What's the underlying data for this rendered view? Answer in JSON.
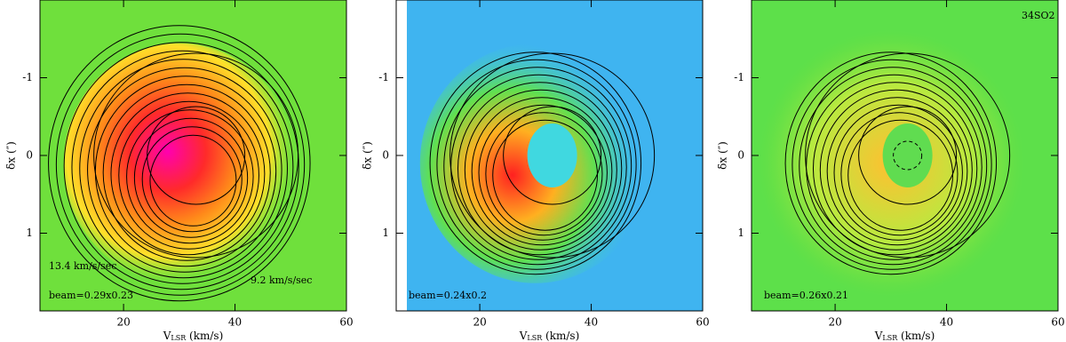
{
  "chart_data": [
    {
      "type": "contour",
      "background": "#6fe03c",
      "xlim": [
        5,
        60
      ],
      "xticks": [
        20,
        40,
        60
      ],
      "ylim": [
        2,
        -2
      ],
      "yticks": [
        -1,
        0,
        1
      ],
      "xlabel": [
        "V",
        "LSR",
        " (km/s)"
      ],
      "ylabel": "δx (″)",
      "annotations": [
        "13.4 km/s/sec",
        "9.2 km/s/sec",
        "beam=0.29x0.23"
      ]
    },
    {
      "type": "contour",
      "background": "#3fb4f0",
      "xlim": [
        5,
        60
      ],
      "xticks": [
        20,
        40,
        60
      ],
      "ylim": [
        2,
        -2
      ],
      "yticks": [
        -1,
        0,
        1
      ],
      "xlabel": [
        "V",
        "LSR",
        " (km/s)"
      ],
      "ylabel": "δx (″)",
      "annotations": [
        "beam=0.24x0.2"
      ]
    },
    {
      "type": "contour",
      "background": "#5de04a",
      "xlim": [
        5,
        60
      ],
      "xticks": [
        20,
        40,
        60
      ],
      "ylim": [
        2,
        -2
      ],
      "yticks": [
        -1,
        0,
        1
      ],
      "xlabel": [
        "V",
        "LSR",
        " (km/s)"
      ],
      "ylabel": "δx (″)",
      "annotations": [
        "beam=0.26x0.21",
        "34SO2"
      ]
    }
  ]
}
